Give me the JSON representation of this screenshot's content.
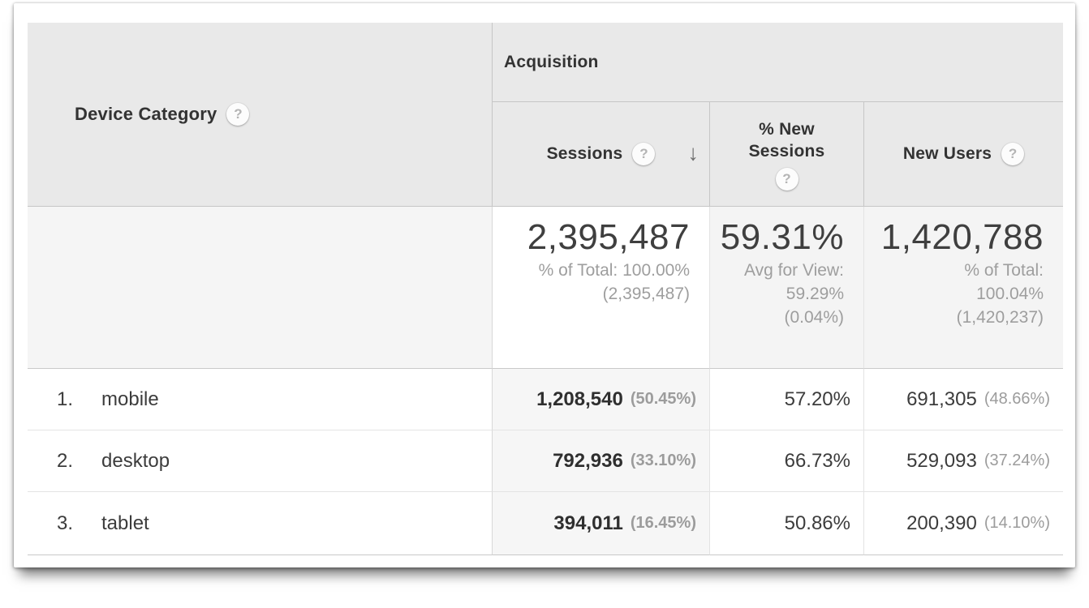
{
  "table": {
    "dimension_header": {
      "label": "Device Category"
    },
    "group_header": {
      "label": "Acquisition"
    },
    "columns": {
      "sessions": {
        "label": "Sessions",
        "sorted": "descending"
      },
      "pct_new_sessions": {
        "label_line1": "% New",
        "label_line2": "Sessions"
      },
      "new_users": {
        "label": "New Users"
      }
    },
    "summary": {
      "sessions": {
        "value": "2,395,487",
        "sub1": "% of Total: 100.00%",
        "sub2": "(2,395,487)"
      },
      "pct_new_sessions": {
        "value": "59.31%",
        "sub1": "Avg for View:",
        "sub2": "59.29%",
        "sub3": "(0.04%)"
      },
      "new_users": {
        "value": "1,420,788",
        "sub1": "% of Total:",
        "sub2": "100.04%",
        "sub3": "(1,420,237)"
      }
    },
    "rows": [
      {
        "index": "1.",
        "label": "mobile",
        "sessions": "1,208,540",
        "sessions_pct": "(50.45%)",
        "pct_new_sessions": "57.20%",
        "new_users": "691,305",
        "new_users_pct": "(48.66%)"
      },
      {
        "index": "2.",
        "label": "desktop",
        "sessions": "792,936",
        "sessions_pct": "(33.10%)",
        "pct_new_sessions": "66.73%",
        "new_users": "529,093",
        "new_users_pct": "(37.24%)"
      },
      {
        "index": "3.",
        "label": "tablet",
        "sessions": "394,011",
        "sessions_pct": "(16.45%)",
        "pct_new_sessions": "50.86%",
        "new_users": "200,390",
        "new_users_pct": "(14.10%)"
      }
    ]
  },
  "icons": {
    "help": "?",
    "sort_desc": "↓"
  },
  "colors": {
    "header_bg": "#e9e9e9",
    "summary_tint_bg": "#f4f4f4",
    "sorted_column_bg": "#f6f6f6",
    "border_strong": "#c6c6c6",
    "border_light": "#e4e4e4",
    "text_dark": "#333333",
    "text_gray": "#9e9e9e"
  }
}
